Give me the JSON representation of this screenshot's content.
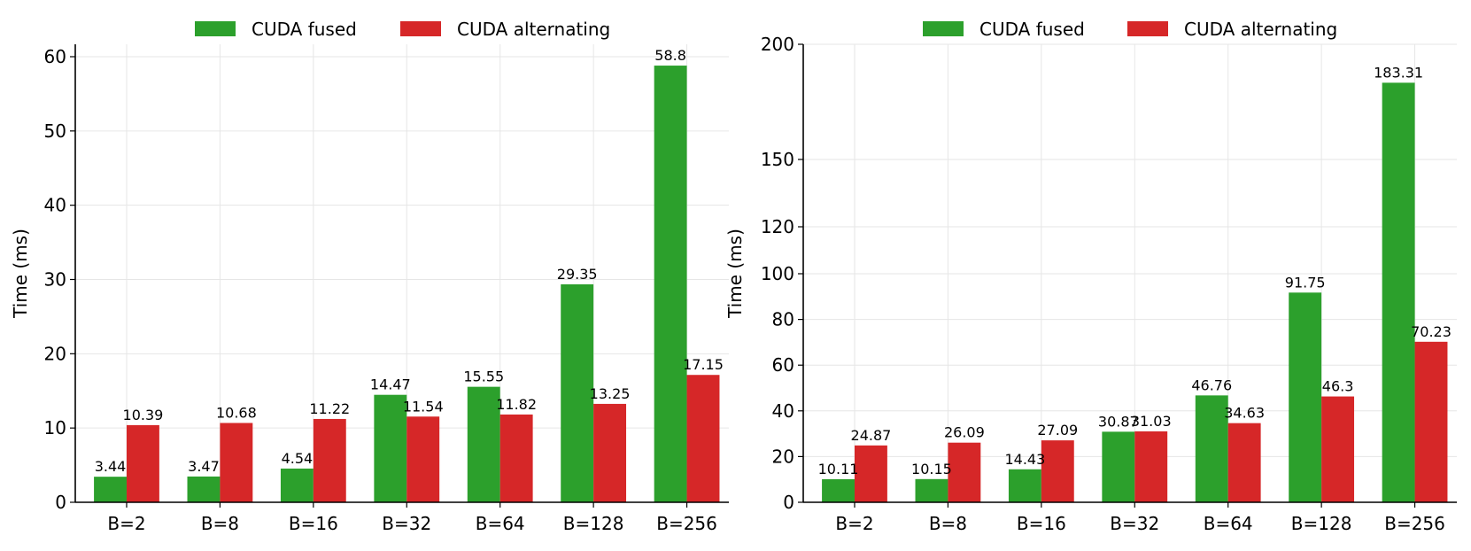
{
  "legend": {
    "fused_label": "CUDA fused",
    "alternating_label": "CUDA alternating"
  },
  "colors": {
    "fused": "#2ca02c",
    "alternating": "#d62728",
    "grid": "#e6e6e6"
  },
  "chart_data": [
    {
      "type": "bar",
      "title": "",
      "xlabel": "",
      "ylabel": "Time (ms)",
      "categories": [
        "B=2",
        "B=8",
        "B=16",
        "B=32",
        "B=64",
        "B=128",
        "B=256"
      ],
      "series": [
        {
          "name": "CUDA fused",
          "values": [
            3.44,
            3.47,
            4.54,
            14.47,
            15.55,
            29.35,
            58.8
          ],
          "labels": [
            "3.44",
            "3.47",
            "4.54",
            "14.47",
            "15.55",
            "29.35",
            "58.8"
          ]
        },
        {
          "name": "CUDA alternating",
          "values": [
            10.39,
            10.68,
            11.22,
            11.54,
            11.82,
            13.25,
            17.15
          ],
          "labels": [
            "10.39",
            "10.68",
            "11.22",
            "11.54",
            "11.82",
            "13.25",
            "17.15"
          ]
        }
      ],
      "ylim": [
        0,
        62
      ],
      "yticks": [
        0,
        10,
        20,
        30,
        40,
        50,
        60
      ],
      "yscale": "linear",
      "grid": true,
      "legend_position": "top-center"
    },
    {
      "type": "bar",
      "title": "",
      "xlabel": "",
      "ylabel": "Time (ms)",
      "categories": [
        "B=2",
        "B=8",
        "B=16",
        "B=32",
        "B=64",
        "B=128",
        "B=256"
      ],
      "series": [
        {
          "name": "CUDA fused",
          "values": [
            10.11,
            10.15,
            14.43,
            30.87,
            46.76,
            91.75,
            183.31
          ],
          "labels": [
            "10.11",
            "10.15",
            "14.43",
            "30.87",
            "46.76",
            "91.75",
            "183.31"
          ]
        },
        {
          "name": "CUDA alternating",
          "values": [
            24.87,
            26.09,
            27.09,
            31.03,
            34.63,
            46.3,
            70.23
          ],
          "labels": [
            "24.87",
            "26.09",
            "27.09",
            "31.03",
            "34.63",
            "46.3",
            "70.23"
          ]
        }
      ],
      "ylim": [
        0,
        200
      ],
      "yticks": [
        0,
        20,
        40,
        60,
        80,
        100,
        120,
        150,
        200
      ],
      "yscale": "piecewise",
      "grid": true,
      "legend_position": "top-center"
    }
  ]
}
